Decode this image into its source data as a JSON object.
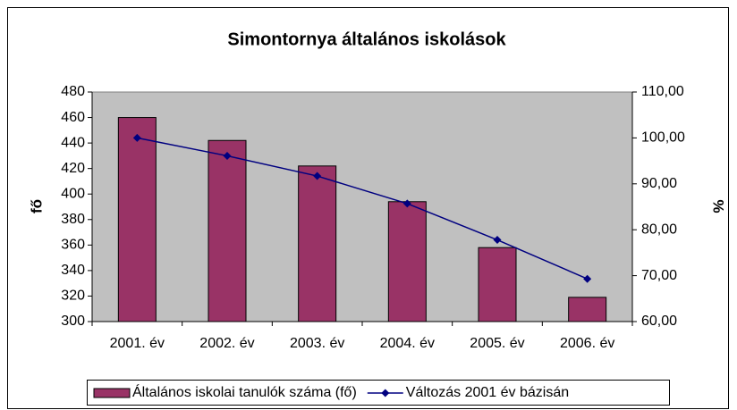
{
  "chart_data": {
    "type": "bar",
    "title": "Simontornya általános iskolások",
    "ylabel": "fő",
    "y2label": "%",
    "categories": [
      "2001. év",
      "2002. év",
      "2003. év",
      "2004. év",
      "2005. év",
      "2006. év"
    ],
    "series": [
      {
        "name": "Általános iskolai tanulók száma (fő)",
        "type": "bar",
        "color": "#993366",
        "values": [
          460,
          442,
          422,
          394,
          358,
          319
        ]
      },
      {
        "name": "Változás 2001 év bázisán",
        "type": "line",
        "axis": "y2",
        "color": "#000080",
        "values": [
          100,
          96.1,
          91.7,
          85.7,
          77.8,
          69.3
        ]
      }
    ],
    "ylim": [
      300,
      480
    ],
    "yticks": [
      300,
      320,
      340,
      360,
      380,
      400,
      420,
      440,
      460,
      480
    ],
    "y2lim": [
      60,
      110
    ],
    "y2ticks": [
      {
        "value": 60,
        "label": "60,00"
      },
      {
        "value": 70,
        "label": "70,00"
      },
      {
        "value": 80,
        "label": "80,00"
      },
      {
        "value": 90,
        "label": "90,00"
      },
      {
        "value": 100,
        "label": "100,00"
      },
      {
        "value": 110,
        "label": "110,00"
      }
    ],
    "plot_background": "#c0c0c0",
    "legend": "bottom"
  }
}
